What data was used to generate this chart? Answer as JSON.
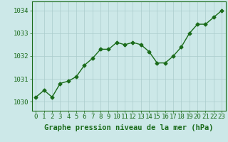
{
  "x": [
    0,
    1,
    2,
    3,
    4,
    5,
    6,
    7,
    8,
    9,
    10,
    11,
    12,
    13,
    14,
    15,
    16,
    17,
    18,
    19,
    20,
    21,
    22,
    23
  ],
  "y": [
    1030.2,
    1030.5,
    1030.2,
    1030.8,
    1030.9,
    1031.1,
    1031.6,
    1031.9,
    1032.3,
    1032.3,
    1032.6,
    1032.5,
    1032.6,
    1032.5,
    1032.2,
    1031.7,
    1031.7,
    1032.0,
    1032.4,
    1033.0,
    1033.4,
    1033.4,
    1033.7,
    1034.0
  ],
  "xlim": [
    -0.5,
    23.5
  ],
  "ylim": [
    1029.6,
    1034.4
  ],
  "yticks": [
    1030,
    1031,
    1032,
    1033,
    1034
  ],
  "xticks": [
    0,
    1,
    2,
    3,
    4,
    5,
    6,
    7,
    8,
    9,
    10,
    11,
    12,
    13,
    14,
    15,
    16,
    17,
    18,
    19,
    20,
    21,
    22,
    23
  ],
  "xlabel": "Graphe pression niveau de la mer (hPa)",
  "line_color": "#1a6b1a",
  "marker": "D",
  "marker_size": 2.5,
  "line_width": 1.0,
  "bg_color": "#cce8e8",
  "grid_color": "#aacccc",
  "axis_color": "#1a6b1a",
  "tick_label_color": "#1a6b1a",
  "xlabel_color": "#1a6b1a",
  "xlabel_fontsize": 7.5,
  "tick_fontsize": 6.5
}
